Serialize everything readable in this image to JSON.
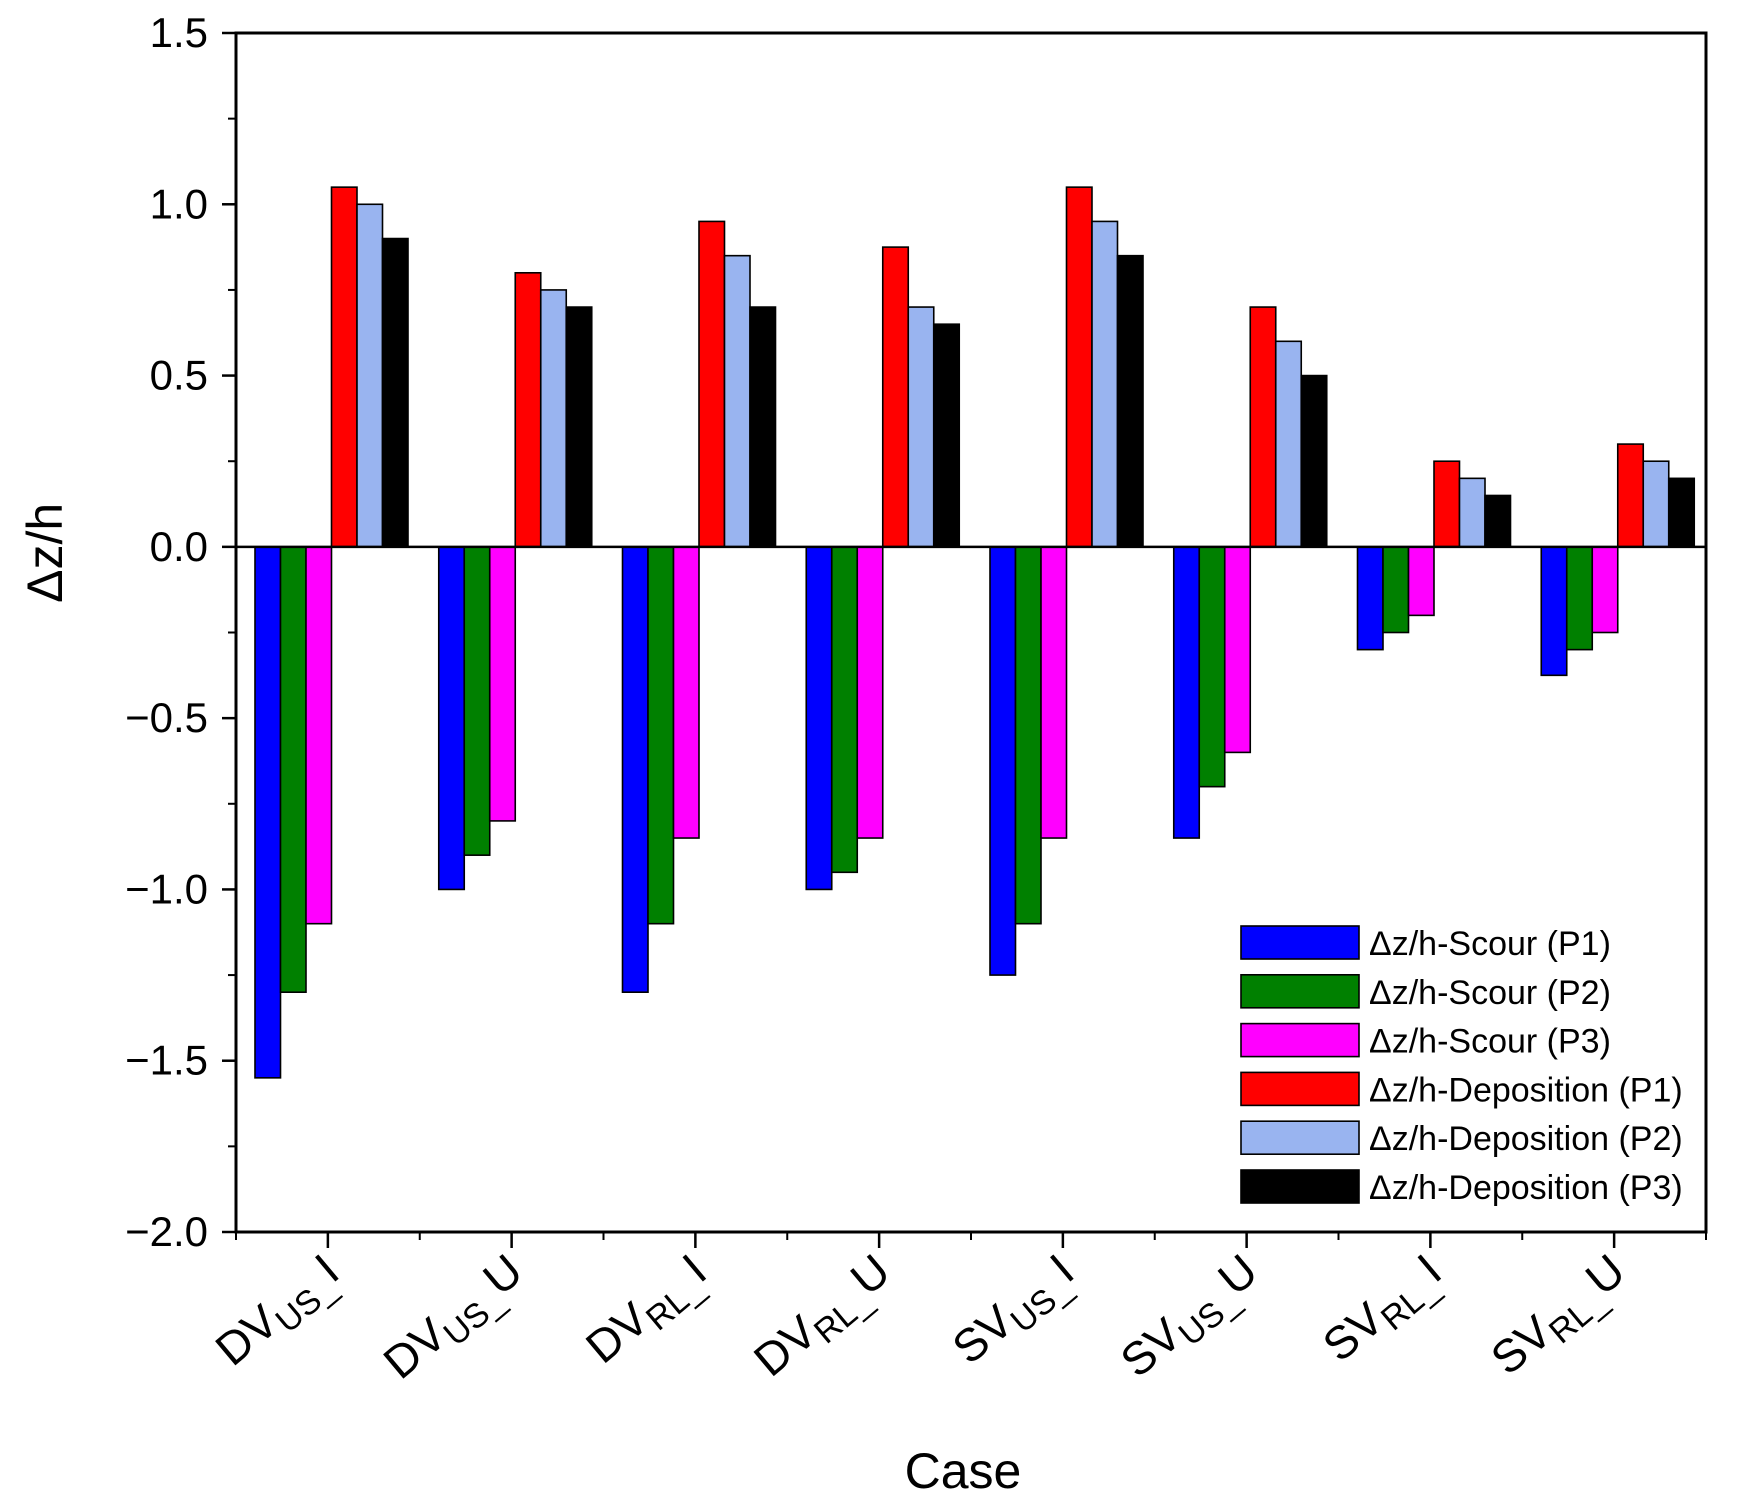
{
  "chart_data": {
    "type": "bar",
    "title": "",
    "xlabel": "Case",
    "ylabel": "Δz/h",
    "ylim": [
      -2.0,
      1.5
    ],
    "yticks": [
      "-2.0",
      "-1.5",
      "-1.0",
      "-0.5",
      "0.0",
      "0.5",
      "1.0",
      "1.5"
    ],
    "grid": false,
    "legend_position": "bottom-right",
    "categories": [
      {
        "base": "DV",
        "sub": "US_",
        "suffix": "I"
      },
      {
        "base": "DV",
        "sub": "US_",
        "suffix": "U"
      },
      {
        "base": "DV",
        "sub": "RL_",
        "suffix": "I"
      },
      {
        "base": "DV",
        "sub": "RL_",
        "suffix": "U"
      },
      {
        "base": "SV",
        "sub": "US_",
        "suffix": "I"
      },
      {
        "base": "SV",
        "sub": "US_",
        "suffix": "U"
      },
      {
        "base": "SV",
        "sub": "RL_",
        "suffix": "I"
      },
      {
        "base": "SV",
        "sub": "RL_",
        "suffix": "U"
      }
    ],
    "series": [
      {
        "name": "Δz/h-Scour (P1)",
        "color": "#0000ff",
        "values": [
          -1.55,
          -1.0,
          -1.3,
          -1.0,
          -1.25,
          -0.85,
          -0.3,
          -0.375
        ]
      },
      {
        "name": "Δz/h-Scour (P2)",
        "color": "#008000",
        "values": [
          -1.3,
          -0.9,
          -1.1,
          -0.95,
          -1.1,
          -0.7,
          -0.25,
          -0.3
        ]
      },
      {
        "name": "Δz/h-Scour (P3)",
        "color": "#ff00ff",
        "values": [
          -1.1,
          -0.8,
          -0.85,
          -0.85,
          -0.85,
          -0.6,
          -0.2,
          -0.25
        ]
      },
      {
        "name": "Δz/h-Deposition (P1)",
        "color": "#ff0000",
        "values": [
          1.05,
          0.8,
          0.95,
          0.875,
          1.05,
          0.7,
          0.25,
          0.3
        ]
      },
      {
        "name": "Δz/h-Deposition (P2)",
        "color": "#99b4f0",
        "values": [
          1.0,
          0.75,
          0.85,
          0.7,
          0.95,
          0.6,
          0.2,
          0.25
        ]
      },
      {
        "name": "Δz/h-Deposition (P3)",
        "color": "#000000",
        "values": [
          0.9,
          0.7,
          0.7,
          0.65,
          0.85,
          0.5,
          0.15,
          0.2
        ]
      }
    ]
  }
}
